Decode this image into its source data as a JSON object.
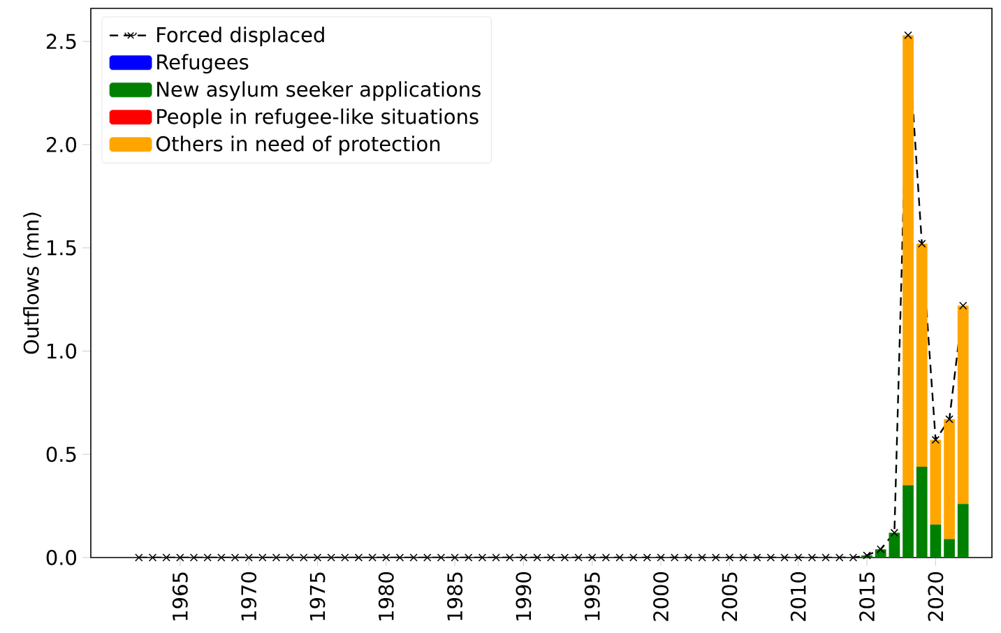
{
  "chart_data": {
    "type": "bar",
    "stacked": true,
    "ylabel": "Outflows (mn)",
    "legend": "top left",
    "grid": false,
    "x": [
      1962,
      1963,
      1964,
      1965,
      1966,
      1967,
      1968,
      1969,
      1970,
      1971,
      1972,
      1973,
      1974,
      1975,
      1976,
      1977,
      1978,
      1979,
      1980,
      1981,
      1982,
      1983,
      1984,
      1985,
      1986,
      1987,
      1988,
      1989,
      1990,
      1991,
      1992,
      1993,
      1994,
      1995,
      1996,
      1997,
      1998,
      1999,
      2000,
      2001,
      2002,
      2003,
      2004,
      2005,
      2006,
      2007,
      2008,
      2009,
      2010,
      2011,
      2012,
      2013,
      2014,
      2015,
      2016,
      2017,
      2018,
      2019,
      2020,
      2021,
      2022
    ],
    "xlim": [
      1958.5,
      2024.1
    ],
    "ylim": [
      0,
      2.66
    ],
    "xticks": [
      1965,
      1970,
      1975,
      1980,
      1985,
      1990,
      1995,
      2000,
      2005,
      2010,
      2015,
      2020
    ],
    "yticks": [
      {
        "value": 0,
        "label": "0.0"
      },
      {
        "value": 0.5,
        "label": "0.5"
      },
      {
        "value": 1,
        "label": "1.0"
      },
      {
        "value": 1.5,
        "label": "1.5"
      },
      {
        "value": 2,
        "label": "2.0"
      },
      {
        "value": 2.5,
        "label": "2.5"
      }
    ],
    "series": [
      {
        "name": "Forced displaced",
        "type": "line",
        "color": "#000000",
        "marker": "cross",
        "line_style": "dashed",
        "values": [
          0,
          0,
          0,
          0,
          0,
          0,
          0,
          0,
          0,
          0,
          0,
          0,
          0,
          0,
          0,
          0,
          0,
          0,
          0,
          0,
          0,
          0,
          0,
          0,
          0,
          0,
          0,
          0,
          0,
          0,
          0,
          0,
          0,
          0,
          0,
          0,
          0,
          0,
          0,
          0,
          0,
          0,
          0,
          0,
          0,
          0,
          0,
          0,
          0,
          0,
          0,
          0,
          0,
          0.01,
          0.04,
          0.12,
          2.53,
          1.52,
          0.57,
          0.67,
          1.22
        ]
      },
      {
        "name": "Refugees",
        "color": "#0000ff",
        "values": [
          0,
          0,
          0,
          0,
          0,
          0,
          0,
          0,
          0,
          0,
          0,
          0,
          0,
          0,
          0,
          0,
          0,
          0,
          0,
          0,
          0,
          0,
          0,
          0,
          0,
          0,
          0,
          0,
          0,
          0,
          0,
          0,
          0,
          0,
          0,
          0,
          0,
          0,
          0,
          0,
          0,
          0,
          0,
          0,
          0,
          0,
          0,
          0,
          0,
          0,
          0,
          0,
          0,
          0,
          0,
          0,
          0,
          0,
          0,
          0,
          0
        ]
      },
      {
        "name": "New asylum seeker applications",
        "color": "#008000",
        "values": [
          0,
          0,
          0,
          0,
          0,
          0,
          0,
          0,
          0,
          0,
          0,
          0,
          0,
          0,
          0,
          0,
          0,
          0,
          0,
          0,
          0,
          0,
          0,
          0,
          0,
          0,
          0,
          0,
          0,
          0,
          0,
          0,
          0,
          0,
          0,
          0,
          0,
          0,
          0,
          0,
          0,
          0,
          0,
          0,
          0,
          0,
          0,
          0,
          0,
          0,
          0,
          0,
          0,
          0.01,
          0.04,
          0.12,
          0.35,
          0.44,
          0.16,
          0.09,
          0.26
        ]
      },
      {
        "name": "People in refugee-like situations",
        "color": "#ff0000",
        "values": [
          0,
          0,
          0,
          0,
          0,
          0,
          0,
          0,
          0,
          0,
          0,
          0,
          0,
          0,
          0,
          0,
          0,
          0,
          0,
          0,
          0,
          0,
          0,
          0,
          0,
          0,
          0,
          0,
          0,
          0,
          0,
          0,
          0,
          0,
          0,
          0,
          0,
          0,
          0,
          0,
          0,
          0,
          0,
          0,
          0,
          0,
          0,
          0,
          0,
          0,
          0,
          0,
          0,
          0,
          0,
          0,
          0,
          0,
          0,
          0,
          0
        ]
      },
      {
        "name": "Others in need of protection",
        "color": "#ffa500",
        "values": [
          0,
          0,
          0,
          0,
          0,
          0,
          0,
          0,
          0,
          0,
          0,
          0,
          0,
          0,
          0,
          0,
          0,
          0,
          0,
          0,
          0,
          0,
          0,
          0,
          0,
          0,
          0,
          0,
          0,
          0,
          0,
          0,
          0,
          0,
          0,
          0,
          0,
          0,
          0,
          0,
          0,
          0,
          0,
          0,
          0,
          0,
          0,
          0,
          0,
          0,
          0,
          0,
          0,
          0,
          0,
          0,
          2.18,
          1.08,
          0.41,
          0.58,
          0.96
        ]
      }
    ]
  }
}
